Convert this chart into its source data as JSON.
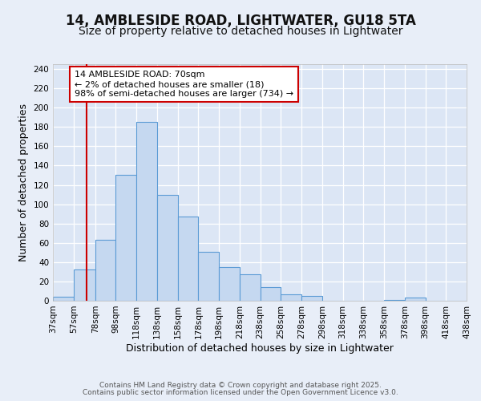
{
  "title": "14, AMBLESIDE ROAD, LIGHTWATER, GU18 5TA",
  "subtitle": "Size of property relative to detached houses in Lightwater",
  "xlabel": "Distribution of detached houses by size in Lightwater",
  "ylabel": "Number of detached properties",
  "bar_color": "#c5d8f0",
  "bar_edge_color": "#5b9bd5",
  "background_color": "#dce6f5",
  "grid_color": "#ffffff",
  "fig_background": "#e8eef8",
  "bins": [
    37,
    57,
    78,
    98,
    118,
    138,
    158,
    178,
    198,
    218,
    238,
    258,
    278,
    298,
    318,
    338,
    358,
    378,
    398,
    418,
    438
  ],
  "bin_labels": [
    "37sqm",
    "57sqm",
    "78sqm",
    "98sqm",
    "118sqm",
    "138sqm",
    "158sqm",
    "178sqm",
    "198sqm",
    "218sqm",
    "238sqm",
    "258sqm",
    "278sqm",
    "298sqm",
    "318sqm",
    "338sqm",
    "358sqm",
    "378sqm",
    "398sqm",
    "418sqm",
    "438sqm"
  ],
  "counts": [
    4,
    32,
    63,
    130,
    185,
    110,
    87,
    51,
    35,
    27,
    14,
    7,
    5,
    0,
    0,
    0,
    1,
    3,
    0,
    0
  ],
  "ylim": [
    0,
    245
  ],
  "yticks": [
    0,
    20,
    40,
    60,
    80,
    100,
    120,
    140,
    160,
    180,
    200,
    220,
    240
  ],
  "vline_x": 70,
  "vline_color": "#cc0000",
  "annotation_text": "14 AMBLESIDE ROAD: 70sqm\n← 2% of detached houses are smaller (18)\n98% of semi-detached houses are larger (734) →",
  "annotation_box_edge": "#cc0000",
  "footer_line1": "Contains HM Land Registry data © Crown copyright and database right 2025.",
  "footer_line2": "Contains public sector information licensed under the Open Government Licence v3.0.",
  "title_fontsize": 12,
  "subtitle_fontsize": 10,
  "axis_label_fontsize": 9,
  "tick_fontsize": 7.5,
  "annotation_fontsize": 8,
  "footer_fontsize": 6.5
}
